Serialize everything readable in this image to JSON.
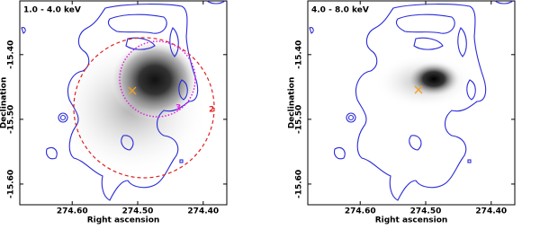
{
  "chart_data": [
    {
      "type": "image",
      "title": "1.0 - 4.0 keV",
      "xlabel": "Right ascension",
      "ylabel": "Declination",
      "xlim": [
        274.68,
        274.364
      ],
      "ylim": [
        -15.632,
        -15.317
      ],
      "xticks": [
        {
          "value": 274.6,
          "label": "274.60"
        },
        {
          "value": 274.5,
          "label": "274.50"
        },
        {
          "value": 274.4,
          "label": "274.40"
        }
      ],
      "yticks": [
        {
          "value": -15.4,
          "label": "-15.40"
        },
        {
          "value": -15.5,
          "label": "-15.50"
        },
        {
          "value": -15.6,
          "label": "-15.60"
        }
      ],
      "annotations": [
        {
          "text": "3",
          "color": "#e020e0"
        },
        {
          "text": "2",
          "color": "#e02020"
        }
      ]
    },
    {
      "type": "image",
      "title": "4.0 - 8.0 keV",
      "xlabel": "Right ascension",
      "ylabel": "Declination",
      "xlim": [
        274.68,
        274.364
      ],
      "ylim": [
        -15.632,
        -15.317
      ],
      "xticks": [
        {
          "value": 274.6,
          "label": "274.60"
        },
        {
          "value": 274.5,
          "label": "274.50"
        },
        {
          "value": 274.4,
          "label": "274.40"
        }
      ],
      "yticks": [
        {
          "value": -15.4,
          "label": "-15.40"
        },
        {
          "value": -15.5,
          "label": "-15.50"
        },
        {
          "value": -15.6,
          "label": "-15.60"
        }
      ]
    }
  ]
}
